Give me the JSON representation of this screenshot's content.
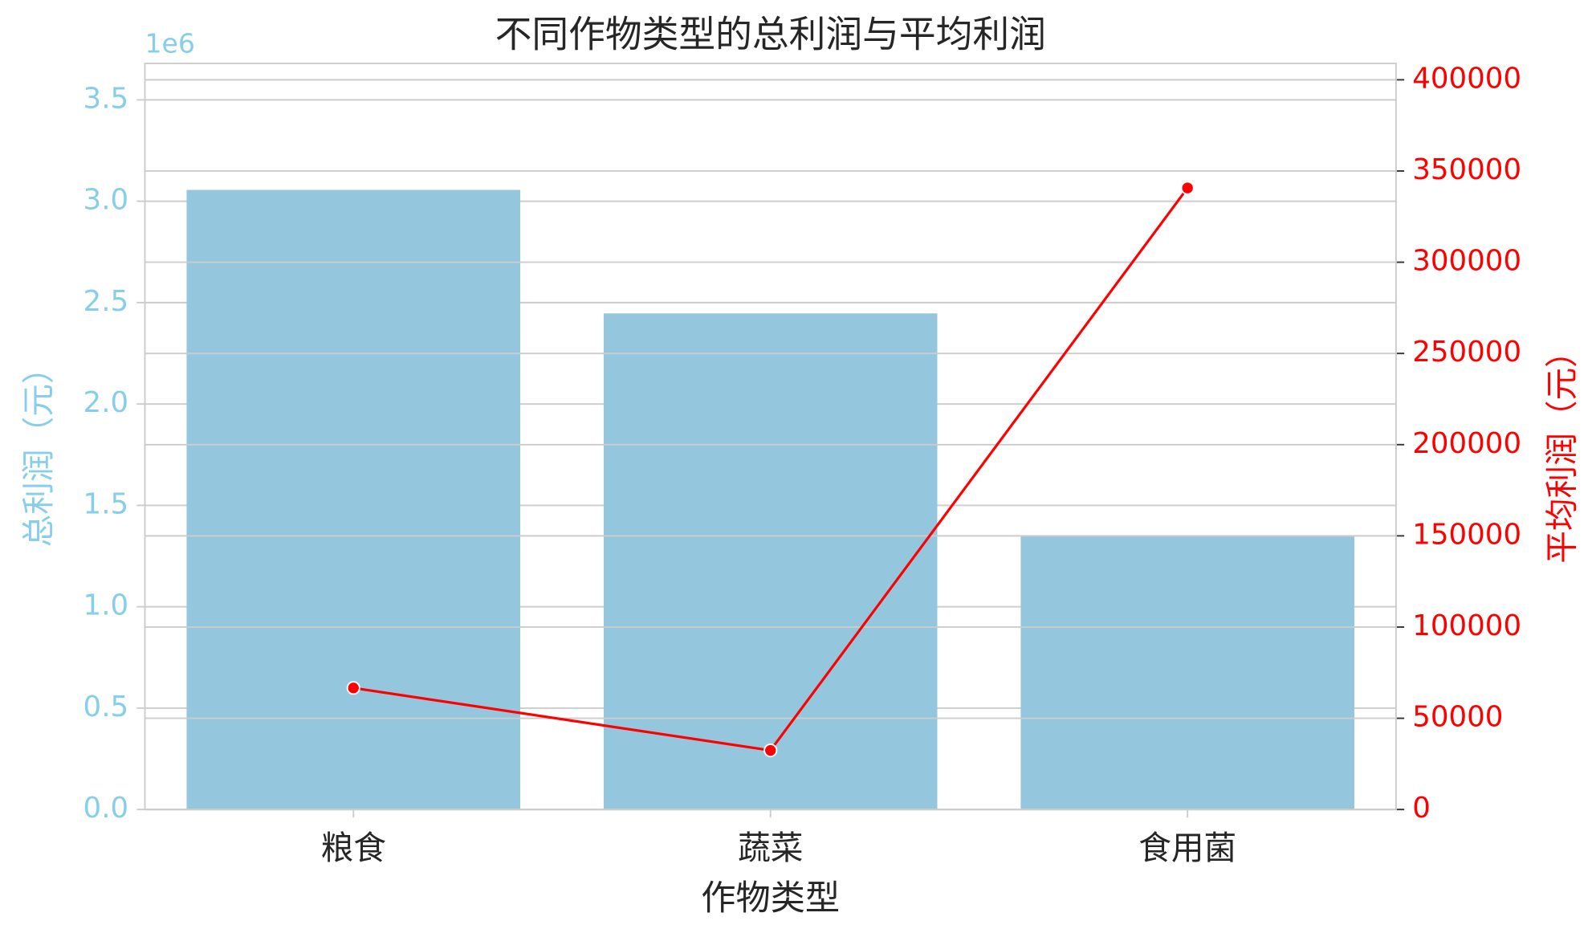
{
  "chart_data": {
    "type": "bar_line",
    "title": "不同作物类型的总利润与平均利润",
    "x_label": "作物类型",
    "y_label": "总利润（元）",
    "y2_label": "平均利润（元）",
    "y_offset_label": "1e6",
    "categories": [
      "粮食",
      "蔬菜",
      "食用菌"
    ],
    "series": [
      {
        "name": "总利润",
        "type": "bar",
        "color": "#94c7dd",
        "values": [
          3.056,
          2.447,
          1.349
        ]
      },
      {
        "name": "平均利润",
        "type": "line",
        "axis": "y2",
        "color": "#ff0000",
        "values": [
          66600,
          32400,
          340700
        ]
      }
    ],
    "ylim": [
      0,
      3.68
    ],
    "yticks": [
      {
        "value": 0,
        "label": "0.0"
      },
      {
        "value": 0.5,
        "label": "0.5"
      },
      {
        "value": 1,
        "label": "1.0"
      },
      {
        "value": 1.5,
        "label": "1.5"
      },
      {
        "value": 2,
        "label": "2.0"
      },
      {
        "value": 2.5,
        "label": "2.5"
      },
      {
        "value": 3,
        "label": "3.0"
      },
      {
        "value": 3.5,
        "label": "3.5"
      }
    ],
    "y_axis_color": "#87ceeb",
    "y2lim": [
      0,
      409000
    ],
    "y2ticks": [
      0,
      50000,
      100000,
      150000,
      200000,
      250000,
      300000,
      350000,
      400000
    ],
    "y2_axis_color": "#ff0000",
    "grid": true
  }
}
